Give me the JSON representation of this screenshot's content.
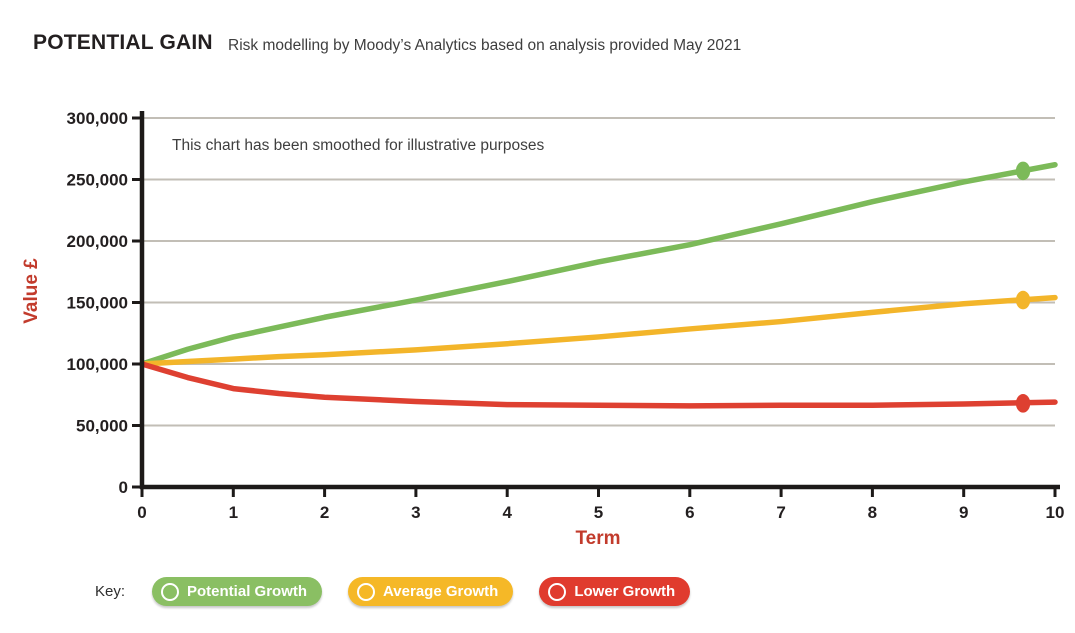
{
  "header": {
    "title": "POTENTIAL GAIN",
    "subtitle": "Risk modelling by Moody’s Analytics based on analysis provided May 2021"
  },
  "chart_data": {
    "type": "line",
    "title": "POTENTIAL GAIN",
    "note": "This chart has been smoothed for illustrative purposes",
    "xlabel": "Term",
    "ylabel": "Value £",
    "xlim": [
      0,
      10
    ],
    "ylim": [
      0,
      300000
    ],
    "xticks": [
      0,
      1,
      2,
      3,
      4,
      5,
      6,
      7,
      8,
      9,
      10
    ],
    "yticks": [
      0,
      50000,
      100000,
      150000,
      200000,
      250000,
      300000
    ],
    "ytick_labels": [
      "0",
      "50,000",
      "100,000",
      "150,000",
      "200,000",
      "250,000",
      "300,000"
    ],
    "grid": "horizontal",
    "legend_position": "bottom",
    "x": [
      0,
      0.5,
      1,
      1.5,
      2,
      3,
      4,
      5,
      6,
      7,
      8,
      9,
      10
    ],
    "series": [
      {
        "name": "Potential Growth",
        "color": "#7cba59",
        "values": [
          100000,
          112000,
          122000,
          130000,
          138000,
          152000,
          167000,
          183000,
          197000,
          214000,
          232000,
          248000,
          262000
        ],
        "end_dot": {
          "x": 9.65,
          "value": 257000
        }
      },
      {
        "name": "Average Growth",
        "color": "#f3b52a",
        "values": [
          100000,
          102000,
          104000,
          106000,
          107500,
          111500,
          116500,
          122000,
          128500,
          134500,
          142000,
          149000,
          154000
        ],
        "end_dot": {
          "x": 9.65,
          "value": 152000
        }
      },
      {
        "name": "Lower Growth",
        "color": "#de4031",
        "values": [
          100000,
          89000,
          80000,
          76000,
          73000,
          69500,
          67000,
          66500,
          66000,
          66500,
          66500,
          67500,
          69000
        ],
        "end_dot": {
          "x": 9.65,
          "value": 68000
        }
      }
    ]
  },
  "key": {
    "label": "Key:",
    "items": [
      {
        "label": "Potential Growth",
        "color": "#8abf63"
      },
      {
        "label": "Average Growth",
        "color": "#f5b827"
      },
      {
        "label": "Lower Growth",
        "color": "#e03b2e"
      }
    ]
  },
  "colors": {
    "axis_line": "#1d1a19",
    "gridline": "#c2beb6",
    "axis_label": "#c23b2c",
    "tick_text": "#231f20"
  }
}
